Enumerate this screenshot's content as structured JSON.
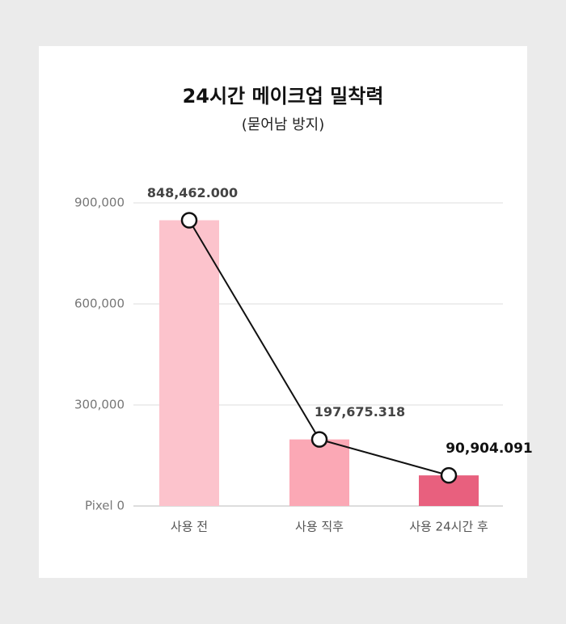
{
  "chart_data": {
    "type": "bar",
    "title": "24시간 메이크업 밀착력",
    "subtitle": "(묻어남 방지)",
    "categories": [
      "사용 전",
      "사용 직후",
      "사용 24시간 후"
    ],
    "values": [
      848462,
      197675.318,
      90904.091
    ],
    "value_labels": [
      "848,462.000",
      "197,675.318",
      "90,904.091"
    ],
    "colors": [
      "#fcc3cc",
      "#fba8b5",
      "#e8607e"
    ],
    "line_color": "#111111",
    "ylim": [
      0,
      900000
    ],
    "yticks": [
      {
        "value": 0,
        "label": "Pixel 0"
      },
      {
        "value": 300000,
        "label": "300,000"
      },
      {
        "value": 600000,
        "label": "600,000"
      },
      {
        "value": 900000,
        "label": "900,000"
      }
    ],
    "grid": true
  }
}
